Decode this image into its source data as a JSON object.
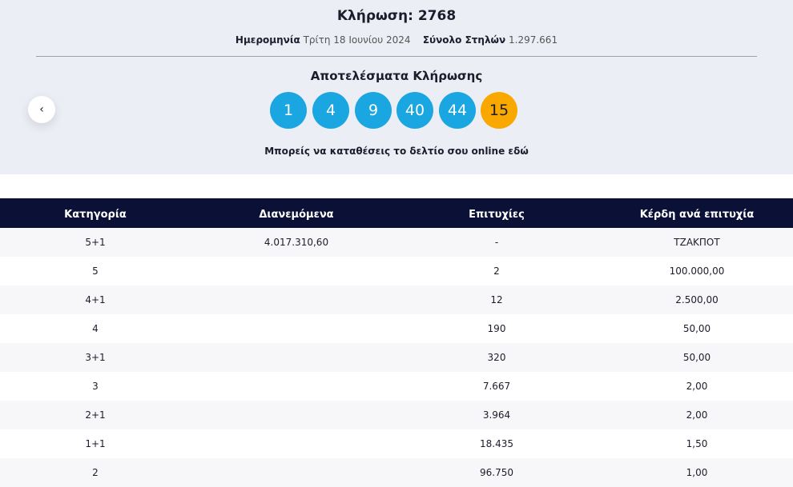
{
  "header": {
    "title": "Κλήρωση: 2768",
    "date_label": "Ημερομηνία",
    "date": "Τρίτη 18 Ιουνίου 2024",
    "columns_label": "Σύνολο Στηλών",
    "columns": "1.297.661"
  },
  "results": {
    "title": "Αποτελέσματα Κλήρωσης",
    "balls": [
      1,
      4,
      9,
      40,
      44
    ],
    "bonus": 15,
    "note": "Μπορείς να καταθέσεις το δελτίο σου online",
    "note_link": "εδώ"
  },
  "table": {
    "headers": [
      "Κατηγορία",
      "Διανεμόμενα",
      "Επιτυχίες",
      "Κέρδη ανά επιτυχία"
    ],
    "rows": [
      [
        "5+1",
        "4.017.310,60",
        "-",
        "ΤΖΑΚΠΟΤ"
      ],
      [
        "5",
        null,
        "2",
        "100.000,00"
      ],
      [
        "4+1",
        null,
        "12",
        "2.500,00"
      ],
      [
        "4",
        null,
        "190",
        "50,00"
      ],
      [
        "3+1",
        null,
        "320",
        "50,00"
      ],
      [
        "3",
        null,
        "7.667",
        "2,00"
      ],
      [
        "2+1",
        null,
        "3.964",
        "2,00"
      ],
      [
        "1+1",
        null,
        "18.435",
        "1,50"
      ],
      [
        "2",
        null,
        "96.750",
        "1,00"
      ]
    ]
  }
}
